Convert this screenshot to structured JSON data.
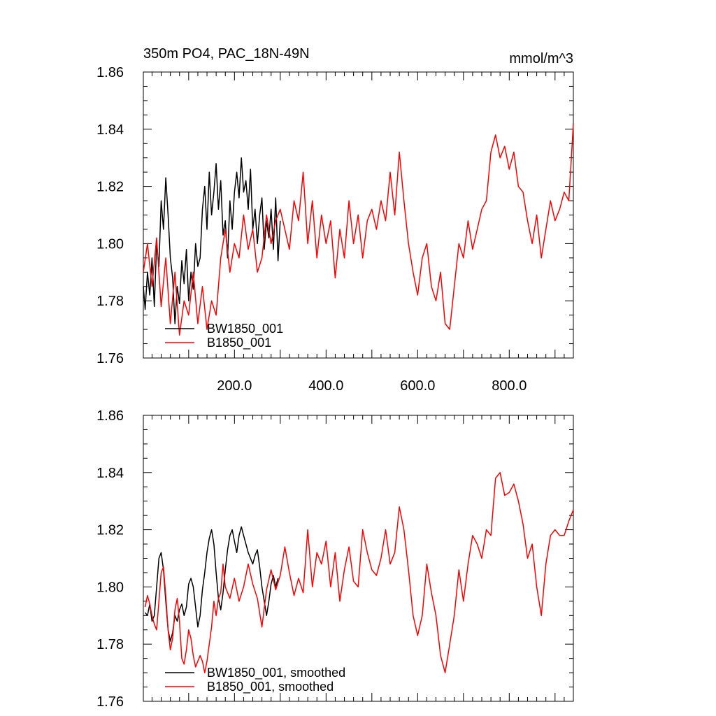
{
  "chart_data": [
    {
      "type": "line",
      "title": "350m PO4, PAC_18N-49N",
      "units": "mmol/m^3",
      "xlim": [
        1,
        940
      ],
      "ylim": [
        1.76,
        1.86
      ],
      "xticks": [
        200,
        400,
        600,
        800
      ],
      "xtick_labels": [
        "200.0",
        "400.0",
        "600.0",
        "800.0"
      ],
      "yticks": [
        1.76,
        1.78,
        1.8,
        1.82,
        1.84,
        1.86
      ],
      "ytick_labels": [
        "1.76",
        "1.78",
        "1.80",
        "1.82",
        "1.84",
        "1.86"
      ],
      "legend_position": "bottom-left",
      "series": [
        {
          "name": "BW1850_001",
          "color": "#000000",
          "x": [
            1,
            5,
            10,
            15,
            20,
            25,
            30,
            35,
            40,
            45,
            50,
            55,
            60,
            65,
            70,
            75,
            80,
            85,
            90,
            95,
            100,
            105,
            110,
            115,
            120,
            125,
            130,
            135,
            140,
            145,
            150,
            155,
            160,
            165,
            170,
            175,
            180,
            185,
            190,
            195,
            200,
            205,
            210,
            215,
            220,
            225,
            230,
            235,
            240,
            245,
            250,
            255,
            260,
            265,
            270,
            275,
            280,
            285,
            290,
            295,
            300
          ],
          "y": [
            1.785,
            1.777,
            1.79,
            1.782,
            1.795,
            1.778,
            1.8,
            1.792,
            1.815,
            1.805,
            1.823,
            1.81,
            1.795,
            1.788,
            1.772,
            1.785,
            1.779,
            1.794,
            1.786,
            1.798,
            1.78,
            1.79,
            1.784,
            1.8,
            1.792,
            1.795,
            1.812,
            1.82,
            1.805,
            1.825,
            1.81,
            1.818,
            1.828,
            1.812,
            1.822,
            1.803,
            1.808,
            1.795,
            1.815,
            1.805,
            1.818,
            1.825,
            1.816,
            1.83,
            1.818,
            1.822,
            1.812,
            1.826,
            1.805,
            1.812,
            1.8,
            1.81,
            1.816,
            1.798,
            1.808,
            1.802,
            1.812,
            1.798,
            1.816,
            1.794,
            1.808
          ]
        },
        {
          "name": "B1850_001",
          "color": "#ff0000",
          "x": [
            1,
            10,
            20,
            30,
            40,
            50,
            60,
            70,
            80,
            90,
            100,
            110,
            120,
            130,
            140,
            150,
            160,
            170,
            180,
            190,
            200,
            210,
            220,
            230,
            240,
            250,
            260,
            270,
            280,
            290,
            300,
            310,
            320,
            330,
            340,
            350,
            360,
            370,
            380,
            390,
            400,
            410,
            420,
            430,
            440,
            450,
            460,
            470,
            480,
            490,
            500,
            510,
            520,
            530,
            540,
            550,
            560,
            570,
            580,
            590,
            600,
            610,
            620,
            630,
            640,
            650,
            660,
            670,
            680,
            690,
            700,
            710,
            720,
            730,
            740,
            750,
            760,
            770,
            780,
            790,
            800,
            810,
            820,
            830,
            840,
            850,
            860,
            870,
            880,
            890,
            900,
            910,
            920,
            930,
            940
          ],
          "y": [
            1.79,
            1.8,
            1.785,
            1.802,
            1.778,
            1.795,
            1.772,
            1.79,
            1.768,
            1.78,
            1.775,
            1.79,
            1.772,
            1.785,
            1.77,
            1.78,
            1.775,
            1.795,
            1.805,
            1.79,
            1.8,
            1.795,
            1.81,
            1.798,
            1.805,
            1.79,
            1.795,
            1.81,
            1.8,
            1.808,
            1.812,
            1.805,
            1.798,
            1.815,
            1.808,
            1.825,
            1.8,
            1.815,
            1.795,
            1.81,
            1.8,
            1.808,
            1.788,
            1.805,
            1.795,
            1.815,
            1.8,
            1.81,
            1.795,
            1.808,
            1.812,
            1.805,
            1.815,
            1.808,
            1.825,
            1.81,
            1.832,
            1.815,
            1.8,
            1.79,
            1.782,
            1.795,
            1.8,
            1.785,
            1.78,
            1.79,
            1.772,
            1.77,
            1.785,
            1.8,
            1.795,
            1.808,
            1.798,
            1.805,
            1.812,
            1.815,
            1.832,
            1.838,
            1.83,
            1.834,
            1.826,
            1.832,
            1.82,
            1.818,
            1.808,
            1.8,
            1.81,
            1.795,
            1.805,
            1.815,
            1.808,
            1.812,
            1.818,
            1.815,
            1.842
          ]
        }
      ]
    },
    {
      "type": "line",
      "title": "",
      "xlim": [
        1,
        940
      ],
      "ylim": [
        1.76,
        1.86
      ],
      "yticks": [
        1.76,
        1.78,
        1.8,
        1.82,
        1.84,
        1.86
      ],
      "ytick_labels": [
        "1.76",
        "1.78",
        "1.80",
        "1.82",
        "1.84",
        "1.86"
      ],
      "legend_position": "bottom-left",
      "series": [
        {
          "name": "BW1850_001, smoothed",
          "color": "#000000",
          "x": [
            5,
            10,
            15,
            20,
            25,
            30,
            35,
            40,
            45,
            50,
            55,
            60,
            65,
            70,
            75,
            80,
            85,
            90,
            95,
            100,
            105,
            110,
            115,
            120,
            125,
            130,
            135,
            140,
            145,
            150,
            155,
            160,
            165,
            170,
            175,
            180,
            185,
            190,
            195,
            200,
            205,
            210,
            215,
            220,
            225,
            230,
            235,
            240,
            245,
            250,
            255,
            260,
            265,
            270,
            275,
            280,
            285,
            290,
            295
          ],
          "y": [
            1.791,
            1.79,
            1.794,
            1.788,
            1.79,
            1.8,
            1.81,
            1.812,
            1.806,
            1.795,
            1.785,
            1.781,
            1.784,
            1.79,
            1.788,
            1.792,
            1.794,
            1.79,
            1.793,
            1.801,
            1.803,
            1.8,
            1.793,
            1.786,
            1.79,
            1.799,
            1.805,
            1.812,
            1.817,
            1.82,
            1.815,
            1.805,
            1.796,
            1.792,
            1.798,
            1.806,
            1.813,
            1.818,
            1.82,
            1.816,
            1.812,
            1.818,
            1.821,
            1.818,
            1.815,
            1.812,
            1.81,
            1.808,
            1.811,
            1.813,
            1.807,
            1.8,
            1.795,
            1.79,
            1.795,
            1.801,
            1.804,
            1.8,
            1.803
          ]
        },
        {
          "name": "B1850_001, smoothed",
          "color": "#ff0000",
          "x": [
            5,
            10,
            15,
            20,
            25,
            30,
            35,
            40,
            45,
            50,
            55,
            60,
            65,
            70,
            75,
            80,
            85,
            90,
            95,
            100,
            105,
            110,
            115,
            120,
            125,
            130,
            135,
            140,
            145,
            150,
            155,
            160,
            165,
            170,
            175,
            180,
            190,
            200,
            210,
            220,
            230,
            240,
            250,
            260,
            270,
            280,
            290,
            300,
            310,
            320,
            330,
            340,
            350,
            360,
            370,
            380,
            390,
            400,
            410,
            420,
            430,
            440,
            450,
            460,
            470,
            480,
            490,
            500,
            510,
            520,
            530,
            540,
            550,
            560,
            570,
            580,
            590,
            600,
            610,
            620,
            630,
            640,
            650,
            660,
            670,
            680,
            690,
            700,
            710,
            720,
            730,
            740,
            750,
            760,
            770,
            780,
            790,
            800,
            810,
            820,
            830,
            840,
            850,
            860,
            870,
            880,
            890,
            900,
            910,
            920,
            930,
            940
          ],
          "y": [
            1.793,
            1.797,
            1.794,
            1.79,
            1.787,
            1.785,
            1.795,
            1.805,
            1.807,
            1.797,
            1.785,
            1.778,
            1.782,
            1.792,
            1.796,
            1.788,
            1.775,
            1.773,
            1.778,
            1.785,
            1.782,
            1.776,
            1.772,
            1.774,
            1.776,
            1.774,
            1.77,
            1.774,
            1.78,
            1.786,
            1.795,
            1.79,
            1.796,
            1.798,
            1.808,
            1.8,
            1.796,
            1.803,
            1.795,
            1.8,
            1.808,
            1.801,
            1.796,
            1.786,
            1.799,
            1.806,
            1.799,
            1.804,
            1.814,
            1.805,
            1.797,
            1.803,
            1.798,
            1.82,
            1.8,
            1.812,
            1.808,
            1.816,
            1.8,
            1.812,
            1.795,
            1.806,
            1.814,
            1.802,
            1.8,
            1.82,
            1.812,
            1.806,
            1.804,
            1.81,
            1.82,
            1.808,
            1.812,
            1.828,
            1.82,
            1.806,
            1.79,
            1.783,
            1.79,
            1.808,
            1.798,
            1.79,
            1.776,
            1.77,
            1.78,
            1.79,
            1.806,
            1.795,
            1.808,
            1.818,
            1.815,
            1.81,
            1.82,
            1.818,
            1.838,
            1.84,
            1.832,
            1.833,
            1.836,
            1.83,
            1.822,
            1.81,
            1.815,
            1.8,
            1.79,
            1.808,
            1.818,
            1.82,
            1.818,
            1.818,
            1.823,
            1.827
          ]
        }
      ]
    }
  ]
}
